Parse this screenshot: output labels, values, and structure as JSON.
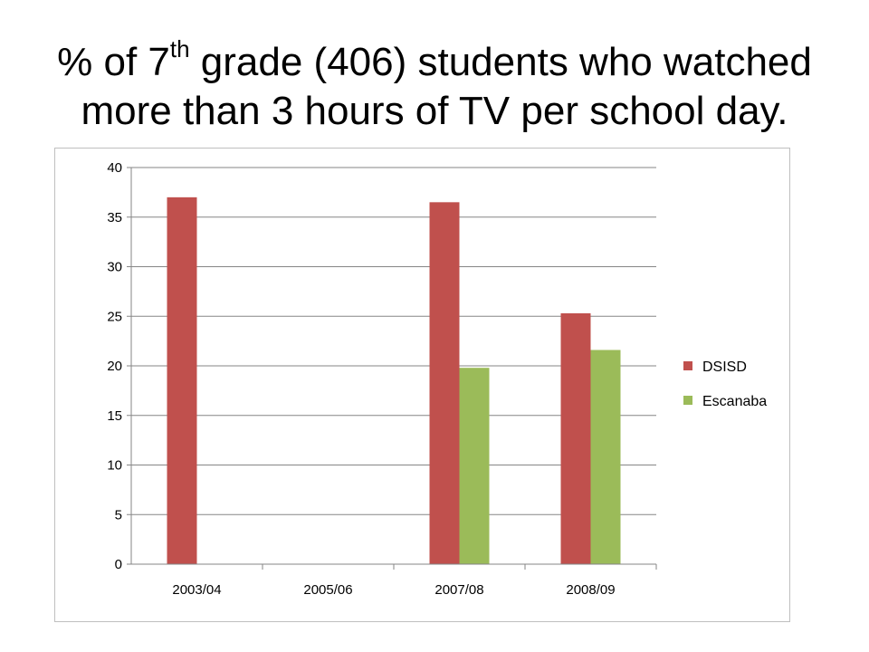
{
  "slide": {
    "title_prefix": "%  of 7",
    "title_sup": "th",
    "title_suffix": " grade (406) students who watched more than 3 hours of TV per school day."
  },
  "chart_data": {
    "type": "bar",
    "categories": [
      "2003/04",
      "2005/06",
      "2007/08",
      "2008/09"
    ],
    "series": [
      {
        "name": "DSISD",
        "color": "#c0504d",
        "values": [
          37,
          null,
          36.5,
          25.3
        ]
      },
      {
        "name": "Escanaba",
        "color": "#9bbb59",
        "values": [
          null,
          null,
          19.8,
          21.6
        ]
      }
    ],
    "title": "",
    "xlabel": "",
    "ylabel": "",
    "ylim": [
      0,
      40
    ],
    "yticks": [
      0,
      5,
      10,
      15,
      20,
      25,
      30,
      35,
      40
    ],
    "grid": true,
    "legend_position": "right"
  }
}
